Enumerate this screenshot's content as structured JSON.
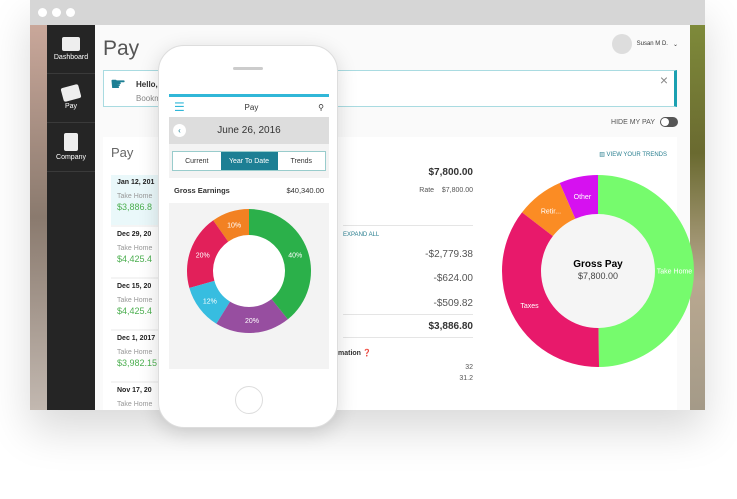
{
  "sidebar": {
    "items": [
      {
        "label": "Dashboard",
        "icon": "dashboard-icon"
      },
      {
        "label": "Pay",
        "icon": "money-icon"
      },
      {
        "label": "Company",
        "icon": "building-icon"
      }
    ]
  },
  "header": {
    "title": "Pay",
    "user": "Susan M D."
  },
  "banner": {
    "line1": "Hello,",
    "line2": "Bookm"
  },
  "hide_pay": "HIDE MY PAY",
  "card": {
    "title": "Pay",
    "trends": "VIEW YOUR TRENDS",
    "paychecks": [
      {
        "date": "Jan 12, 201",
        "label": "Take Home",
        "amount": "$3,886.8"
      },
      {
        "date": "Dec 29, 20",
        "label": "Take Home",
        "amount": "$4,425.4"
      },
      {
        "date": "Dec 15, 20",
        "label": "Take Home",
        "amount": "$4,425.4"
      },
      {
        "date": "Dec 1, 2017",
        "label": "Take Home",
        "amount": "$3,982.15"
      },
      {
        "date": "Nov 17, 20",
        "label": "Take Home",
        "amount": ""
      }
    ],
    "gross": "$7,800.00",
    "rate_label": "Rate",
    "rate": "$7,800.00",
    "expand": "EXPAND ALL",
    "deductions": [
      "-$2,779.38",
      "-$624.00",
      "-$509.82"
    ],
    "net": "$3,886.80",
    "info_label": "mation",
    "info_values": [
      "32",
      "31.2"
    ]
  },
  "donut": {
    "center_title": "Gross Pay",
    "center_value": "$7,800.00",
    "slices": [
      {
        "label": "Take Home",
        "value": 3886.8,
        "color": "#76fb6d"
      },
      {
        "label": "Taxes",
        "value": 2779.38,
        "color": "#e8196b"
      },
      {
        "label": "Retir...",
        "value": 624.0,
        "color": "#fb8c24"
      },
      {
        "label": "Other",
        "value": 509.82,
        "color": "#d611f0"
      }
    ]
  },
  "phone": {
    "title": "Pay",
    "date": "June 26, 2016",
    "tabs": [
      "Current",
      "Year To Date",
      "Trends"
    ],
    "active_tab": "Year To Date",
    "gross_label": "Gross Earnings",
    "gross_value": "$40,340.00",
    "slices": [
      {
        "label": "40%",
        "value": 40,
        "color": "#2bb04a"
      },
      {
        "label": "20%",
        "value": 20,
        "color": "#974ea0"
      },
      {
        "label": "12%",
        "value": 12,
        "color": "#37bde0"
      },
      {
        "label": "20%",
        "value": 20,
        "color": "#e2205a"
      },
      {
        "label": "10%",
        "value": 10,
        "color": "#f28122"
      }
    ]
  }
}
